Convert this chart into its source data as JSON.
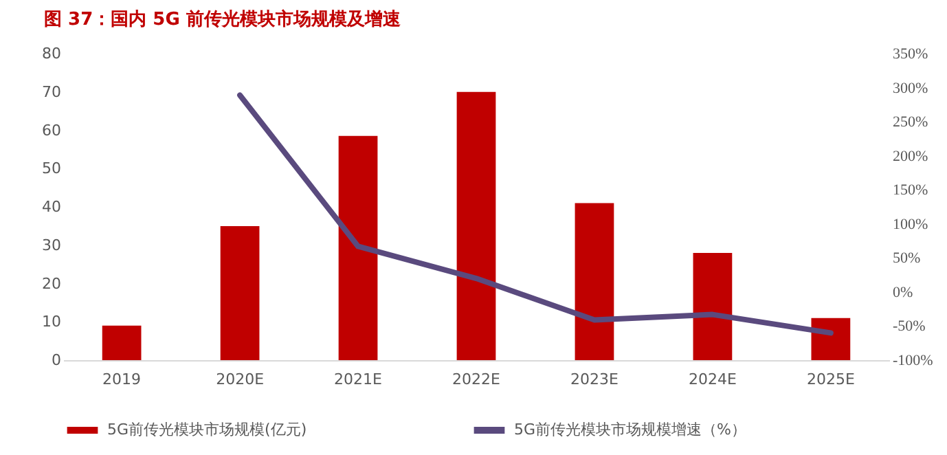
{
  "chart_data": {
    "type": "bar",
    "title": "图 37：国内 5G 前传光模块市场规模及增速",
    "categories": [
      "2019",
      "2020E",
      "2021E",
      "2022E",
      "2023E",
      "2024E",
      "2025E"
    ],
    "series": [
      {
        "name": "5G前传光模块市场规模(亿元)",
        "color": "#c00000",
        "values": [
          9,
          35,
          58.5,
          70,
          41,
          28,
          11
        ]
      },
      {
        "name": "5G前传光模块市场规模增速（%）",
        "type": "line",
        "axis": "y2",
        "color": "#5a4a7e",
        "values": [
          null,
          289,
          67,
          20,
          -41,
          -33,
          -60
        ]
      }
    ],
    "ylim": [
      0,
      80
    ],
    "yticks": [
      0,
      10,
      20,
      30,
      40,
      50,
      60,
      70,
      80
    ],
    "y2lim": [
      -100,
      350
    ],
    "y2ticks": [
      {
        "value": -100,
        "label": "-100%"
      },
      {
        "value": -50,
        "label": "-50%"
      },
      {
        "value": 0,
        "label": "0%"
      },
      {
        "value": 50,
        "label": "50%"
      },
      {
        "value": 100,
        "label": "100%"
      },
      {
        "value": 150,
        "label": "150%"
      },
      {
        "value": 200,
        "label": "200%"
      },
      {
        "value": 250,
        "label": "250%"
      },
      {
        "value": 300,
        "label": "300%"
      },
      {
        "value": 350,
        "label": "350%"
      }
    ],
    "grid": false,
    "legend": "bottom",
    "marker": "none",
    "line_style": "solid"
  }
}
